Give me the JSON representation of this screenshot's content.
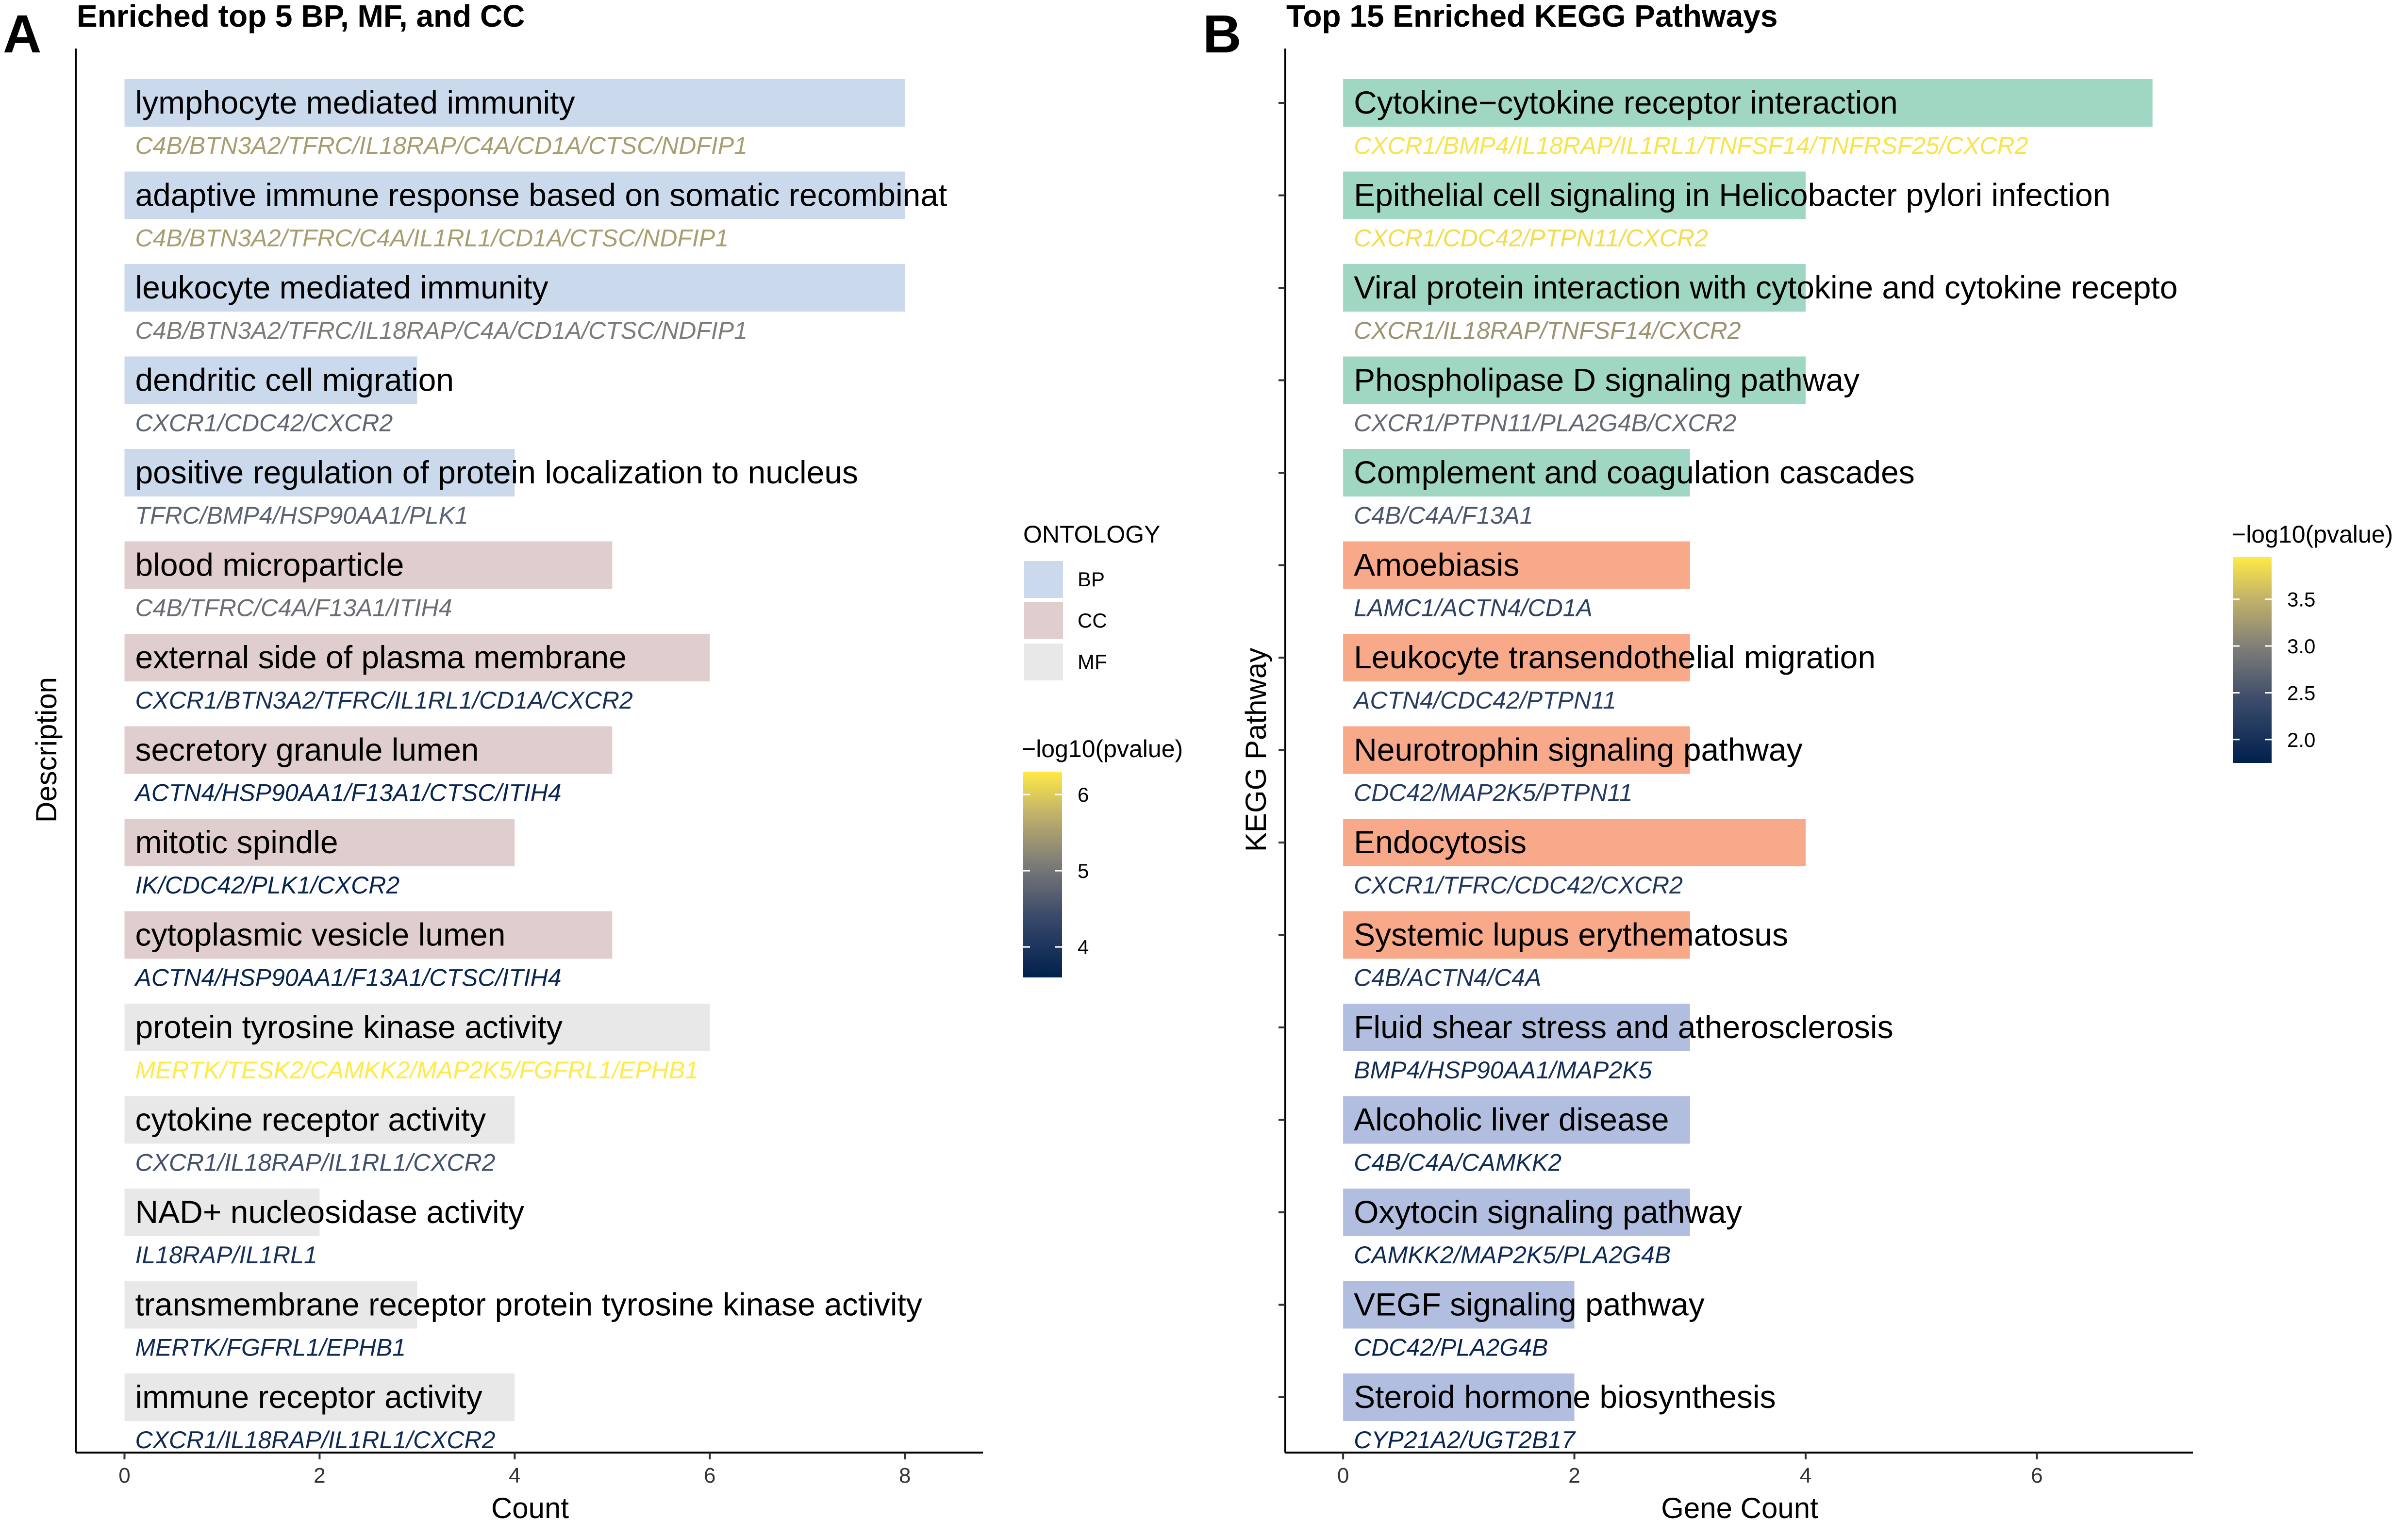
{
  "colors": {
    "BP": "#cbd9ec",
    "CC": "#e0cdcd",
    "MF": "#e8e8e8",
    "Cytokine-group": "#9fd7c2",
    "Amoebiasis-group": "#f7a98a",
    "Fluid-group": "#b2bee0",
    "pvalue_low": "#00204d",
    "pvalue_mid": "#7c7b78",
    "pvalue_high": "#ffea46"
  },
  "chart_data": [
    {
      "panel": "A",
      "type": "bar",
      "orientation": "horizontal",
      "title": "Enriched top 5 BP, MF, and CC",
      "xlabel": "Count",
      "ylabel": "Description",
      "xlim": [
        -0.5,
        8.8
      ],
      "xticks": [
        "0",
        "2",
        "4",
        "6",
        "8"
      ],
      "bars": [
        {
          "term": "lymphocyte mediated immunity",
          "genes": "C4B/BTN3A2/TFRC/IL18RAP/C4A/CD1A/CTSC/NDFIP1",
          "count": 8,
          "neglog10p": 5.5,
          "ontology": "BP"
        },
        {
          "term": "adaptive immune response based on somatic recombinat",
          "genes": "C4B/BTN3A2/TFRC/C4A/IL1RL1/CD1A/CTSC/NDFIP1",
          "count": 8,
          "neglog10p": 5.5,
          "ontology": "BP"
        },
        {
          "term": "leukocyte mediated immunity",
          "genes": "C4B/BTN3A2/TFRC/IL18RAP/C4A/CD1A/CTSC/NDFIP1",
          "count": 8,
          "neglog10p": 5.1,
          "ontology": "BP"
        },
        {
          "term": "dendritic cell migration",
          "genes": "CXCR1/CDC42/CXCR2",
          "count": 3,
          "neglog10p": 4.8,
          "ontology": "BP"
        },
        {
          "term": "positive regulation of protein localization to nucleus",
          "genes": "TFRC/BMP4/HSP90AA1/PLK1",
          "count": 4,
          "neglog10p": 4.75,
          "ontology": "BP"
        },
        {
          "term": "blood microparticle",
          "genes": "C4B/TFRC/C4A/F13A1/ITIH4",
          "count": 5,
          "neglog10p": 4.9,
          "ontology": "CC"
        },
        {
          "term": "external side of plasma membrane",
          "genes": "CXCR1/BTN3A2/TFRC/IL1RL1/CD1A/CXCR2",
          "count": 6,
          "neglog10p": 3.9,
          "ontology": "CC"
        },
        {
          "term": "secretory granule lumen",
          "genes": "ACTN4/HSP90AA1/F13A1/CTSC/ITIH4",
          "count": 5,
          "neglog10p": 3.7,
          "ontology": "CC"
        },
        {
          "term": "mitotic spindle",
          "genes": "IK/CDC42/PLK1/CXCR2",
          "count": 4,
          "neglog10p": 3.7,
          "ontology": "CC"
        },
        {
          "term": "cytoplasmic vesicle lumen",
          "genes": "ACTN4/HSP90AA1/F13A1/CTSC/ITIH4",
          "count": 5,
          "neglog10p": 3.7,
          "ontology": "CC"
        },
        {
          "term": "protein tyrosine kinase activity",
          "genes": "MERTK/TESK2/CAMKK2/MAP2K5/FGFRL1/EPHB1",
          "count": 6,
          "neglog10p": 6.3,
          "ontology": "MF"
        },
        {
          "term": "cytokine receptor activity",
          "genes": "CXCR1/IL18RAP/IL1RL1/CXCR2",
          "count": 4,
          "neglog10p": 4.5,
          "ontology": "MF"
        },
        {
          "term": "NAD+ nucleosidase activity",
          "genes": "IL18RAP/IL1RL1",
          "count": 2,
          "neglog10p": 3.9,
          "ontology": "MF"
        },
        {
          "term": "transmembrane receptor protein tyrosine kinase activity",
          "genes": "MERTK/FGFRL1/EPHB1",
          "count": 3,
          "neglog10p": 3.8,
          "ontology": "MF"
        },
        {
          "term": "immune receptor activity",
          "genes": "CXCR1/IL18RAP/IL1RL1/CXCR2",
          "count": 4,
          "neglog10p": 3.8,
          "ontology": "MF"
        }
      ],
      "legend_fill": {
        "title": "ONTOLOGY",
        "entries": [
          "BP",
          "CC",
          "MF"
        ]
      },
      "legend_color": {
        "title": "−log10(pvalue)",
        "ticks": [
          "4",
          "5",
          "6"
        ],
        "tick_values": [
          4,
          5,
          6
        ],
        "range": [
          3.6,
          6.3
        ]
      }
    },
    {
      "panel": "B",
      "type": "bar",
      "orientation": "horizontal",
      "title": "Top 15 Enriched KEGG Pathways",
      "xlabel": "Gene Count",
      "ylabel": "KEGG Pathway",
      "xlim": [
        -0.5,
        7.35
      ],
      "xticks": [
        "0",
        "2",
        "4",
        "6"
      ],
      "bars": [
        {
          "term": "Cytokine−cytokine receptor interaction",
          "genes": "CXCR1/BMP4/IL18RAP/IL1RL1/TNFSF14/TNFRSF25/CXCR2",
          "count": 7,
          "neglog10p": 3.9,
          "group": "Cytokine-group"
        },
        {
          "term": "Epithelial cell signaling in Helicobacter pylori infection",
          "genes": "CXCR1/CDC42/PTPN11/CXCR2",
          "count": 4,
          "neglog10p": 3.85,
          "group": "Cytokine-group"
        },
        {
          "term": "Viral protein interaction with cytokine and cytokine recepto",
          "genes": "CXCR1/IL18RAP/TNFSF14/CXCR2",
          "count": 4,
          "neglog10p": 3.2,
          "group": "Cytokine-group"
        },
        {
          "term": "Phospholipase D signaling pathway",
          "genes": "CXCR1/PTPN11/PLA2G4B/CXCR2",
          "count": 4,
          "neglog10p": 2.75,
          "group": "Cytokine-group"
        },
        {
          "term": "Complement and coagulation cascades",
          "genes": "C4B/C4A/F13A1",
          "count": 3,
          "neglog10p": 2.55,
          "group": "Cytokine-group"
        },
        {
          "term": "Amoebiasis",
          "genes": "LAMC1/ACTN4/CD1A",
          "count": 3,
          "neglog10p": 2.25,
          "group": "Amoebiasis-group"
        },
        {
          "term": "Leukocyte transendothelial migration",
          "genes": "ACTN4/CDC42/PTPN11",
          "count": 3,
          "neglog10p": 2.2,
          "group": "Amoebiasis-group"
        },
        {
          "term": "Neurotrophin signaling pathway",
          "genes": "CDC42/MAP2K5/PTPN11",
          "count": 3,
          "neglog10p": 2.15,
          "group": "Amoebiasis-group"
        },
        {
          "term": "Endocytosis",
          "genes": "CXCR1/TFRC/CDC42/CXCR2",
          "count": 4,
          "neglog10p": 2.1,
          "group": "Amoebiasis-group"
        },
        {
          "term": "Systemic lupus erythematosus",
          "genes": "C4B/ACTN4/C4A",
          "count": 3,
          "neglog10p": 2.05,
          "group": "Amoebiasis-group"
        },
        {
          "term": "Fluid shear stress and atherosclerosis",
          "genes": "BMP4/HSP90AA1/MAP2K5",
          "count": 3,
          "neglog10p": 1.95,
          "group": "Fluid-group"
        },
        {
          "term": "Alcoholic liver disease",
          "genes": "C4B/C4A/CAMKK2",
          "count": 3,
          "neglog10p": 1.95,
          "group": "Fluid-group"
        },
        {
          "term": "Oxytocin signaling pathway",
          "genes": "CAMKK2/MAP2K5/PLA2G4B",
          "count": 3,
          "neglog10p": 1.9,
          "group": "Fluid-group"
        },
        {
          "term": "VEGF signaling pathway",
          "genes": "CDC42/PLA2G4B",
          "count": 2,
          "neglog10p": 1.85,
          "group": "Fluid-group"
        },
        {
          "term": "Steroid hormone biosynthesis",
          "genes": "CYP21A2/UGT2B17",
          "count": 2,
          "neglog10p": 1.85,
          "group": "Fluid-group"
        }
      ],
      "legend_color": {
        "title": "−log10(pvalue)",
        "ticks": [
          "3.5",
          "3.0",
          "2.5",
          "2.0"
        ],
        "tick_values": [
          3.5,
          3.0,
          2.5,
          2.0
        ],
        "range": [
          1.75,
          3.95
        ]
      }
    }
  ]
}
